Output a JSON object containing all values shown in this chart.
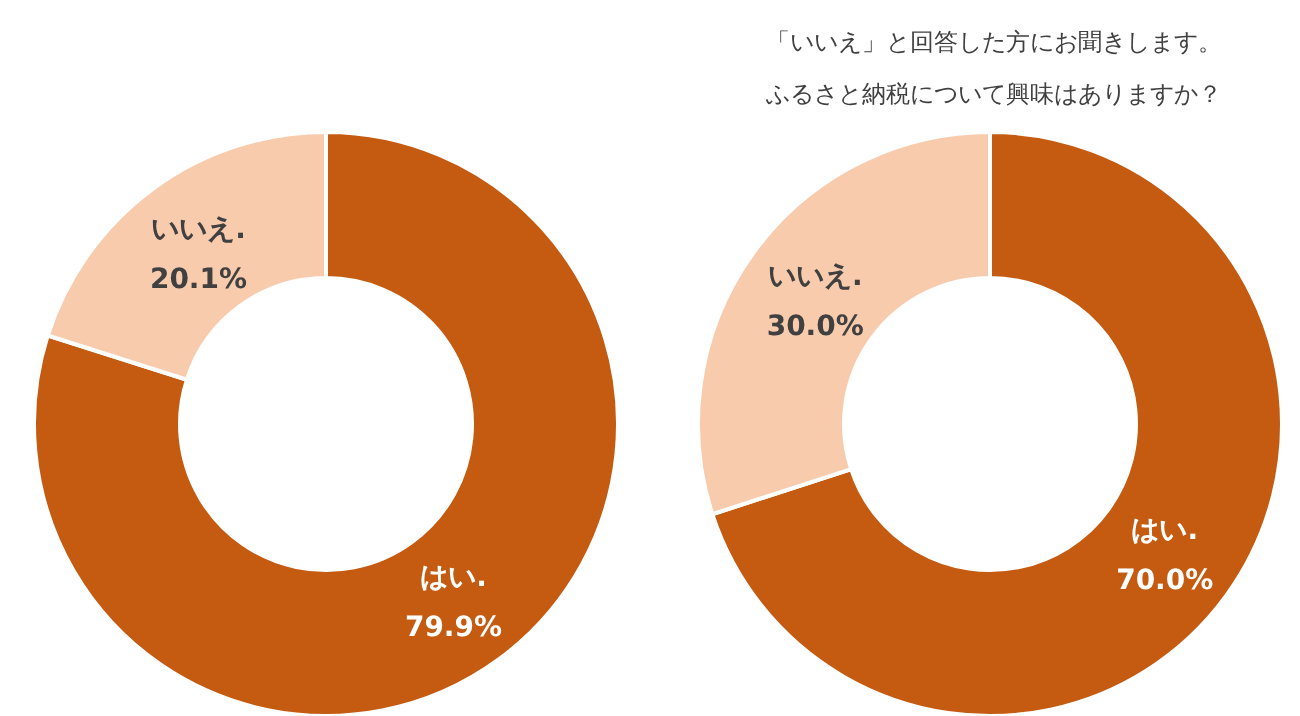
{
  "chart_data": [
    {
      "type": "donut",
      "categories": [
        "はい.",
        "いいえ."
      ],
      "values": [
        79.9,
        20.1
      ],
      "colors": [
        "#c55a11",
        "#f8cbad"
      ],
      "value_labels": [
        "79.9%",
        "20.1%"
      ],
      "legend": false
    },
    {
      "type": "donut",
      "title": "「いいえ」と回答した方にお聞きします。ふるさと納税について興味はありますか？",
      "categories": [
        "はい.",
        "いいえ."
      ],
      "values": [
        70.0,
        30.0
      ],
      "colors": [
        "#c55a11",
        "#f8cbad"
      ],
      "value_labels": [
        "70.0%",
        "30.0%"
      ],
      "legend": false
    }
  ]
}
